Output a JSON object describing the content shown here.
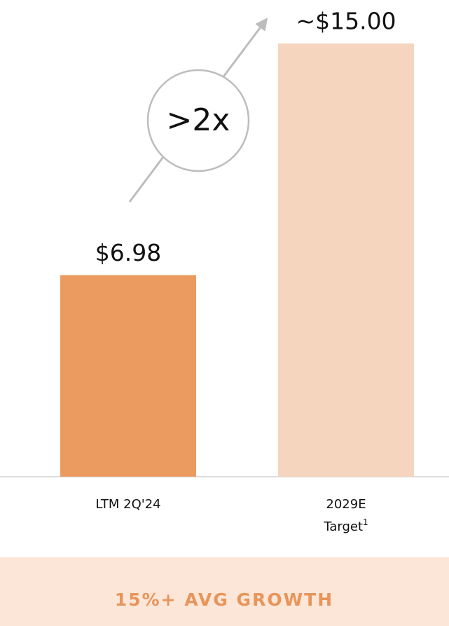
{
  "chart_data": {
    "type": "bar",
    "categories": [
      "LTM 2Q'24",
      "2029E\nTarget"
    ],
    "category_footnotes": [
      null,
      "1"
    ],
    "values": [
      6.98,
      15
    ],
    "value_labels": [
      "$6.98",
      "~$15.00"
    ],
    "colors": [
      "#eb9b5f",
      "#f6d5bf"
    ],
    "annotation": ">2x",
    "banner": "15%+ AVG GROWTH"
  }
}
